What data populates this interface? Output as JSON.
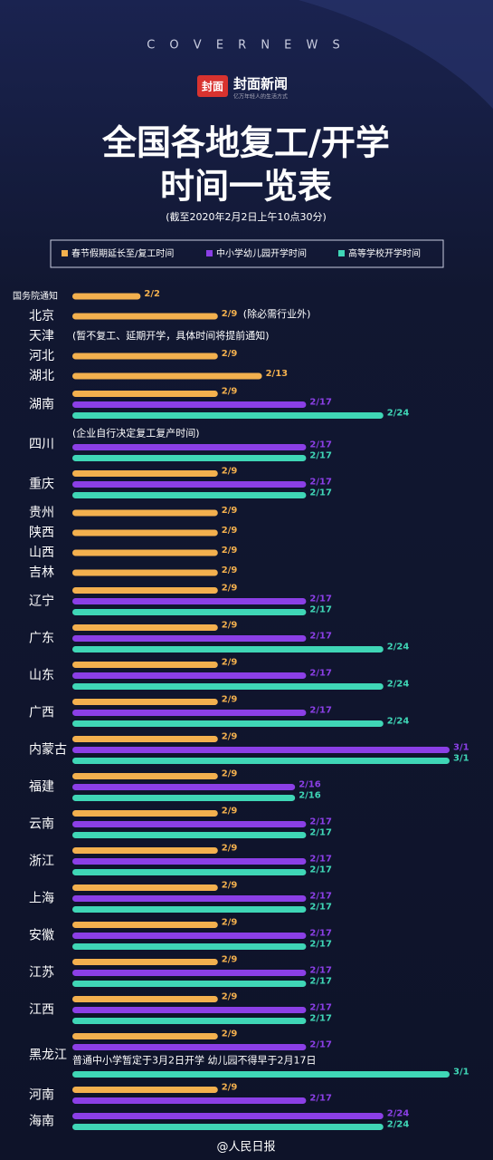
{
  "chart_data": {
    "type": "bar",
    "orientation": "horizontal",
    "brand": "C O V E R   N E W S",
    "logo_icon": "封面",
    "logo_text": "封面新闻",
    "logo_tagline": "亿万年轻人的生活方式",
    "title_lines": [
      "全国各地复工/开学",
      "时间一览表"
    ],
    "subtitle": "(截至2020年2月2日上午10点30分)",
    "footer": "@人民日报",
    "categories": [
      "国务院通知",
      "北京",
      "天津",
      "河北",
      "湖北",
      "湖南",
      "四川",
      "重庆",
      "贵州",
      "陕西",
      "山西",
      "吉林",
      "辽宁",
      "广东",
      "山东",
      "广西",
      "内蒙古",
      "福建",
      "云南",
      "浙江",
      "上海",
      "安徽",
      "江苏",
      "江西",
      "黑龙江",
      "河南",
      "海南"
    ],
    "notes": [
      null,
      "(除必需行业外)",
      "(暂不复工、延期开学，具体时间将提前通知)",
      null,
      null,
      null,
      "(企业自行决定复工复产时间)",
      null,
      null,
      null,
      null,
      null,
      null,
      null,
      null,
      null,
      null,
      null,
      null,
      null,
      null,
      null,
      null,
      null,
      "普通中小学暂定于3月2日开学 幼儿园不得早于2月17日",
      null,
      null
    ],
    "series": [
      {
        "name": "春节假期延长至/复工时间",
        "color": "#f3b04e",
        "values": [
          "2/2",
          "2/9",
          null,
          "2/9",
          "2/13",
          "2/9",
          null,
          "2/9",
          "2/9",
          "2/9",
          "2/9",
          "2/9",
          "2/9",
          "2/9",
          "2/9",
          "2/9",
          "2/9",
          "2/9",
          "2/9",
          "2/9",
          "2/9",
          "2/9",
          "2/9",
          "2/9",
          "2/9",
          "2/9",
          null
        ]
      },
      {
        "name": "中小学幼儿园开学时间",
        "color": "#8b3fe6",
        "values": [
          null,
          null,
          null,
          null,
          null,
          "2/17",
          "2/17",
          "2/17",
          null,
          null,
          null,
          null,
          "2/17",
          "2/17",
          "2/17",
          "2/17",
          "3/1",
          "2/16",
          "2/17",
          "2/17",
          "2/17",
          "2/17",
          "2/17",
          "2/17",
          "2/17",
          "2/17",
          "2/24"
        ]
      },
      {
        "name": "高等学校开学时间",
        "color": "#3fd6b6",
        "values": [
          null,
          null,
          null,
          null,
          null,
          "2/24",
          "2/17",
          "2/17",
          null,
          null,
          null,
          null,
          "2/17",
          "2/24",
          "2/24",
          "2/24",
          "3/1",
          "2/16",
          "2/17",
          "2/17",
          "2/17",
          "2/17",
          "2/17",
          "2/17",
          "3/1",
          null,
          "2/24"
        ]
      }
    ]
  }
}
